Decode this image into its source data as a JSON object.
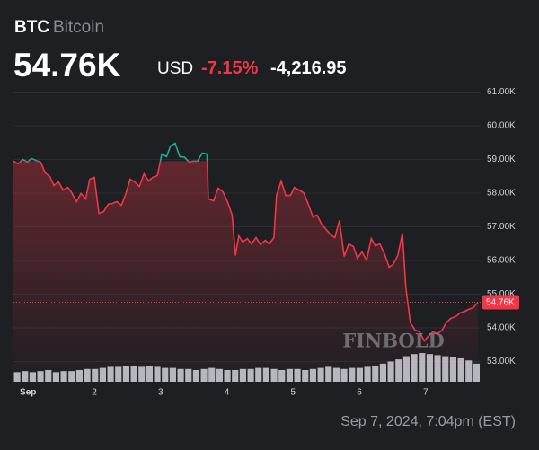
{
  "header": {
    "symbol": "BTC",
    "name": "Bitcoin",
    "price": "54.76K",
    "currency": "USD",
    "change_pct": "-7.15%",
    "change": "-4,216.95"
  },
  "timestamp": "Sep 7, 2024, 7:04pm (EST)",
  "watermark": "FINBOLD",
  "chart_data": {
    "type": "line",
    "x": [
      -0.22,
      -0.15,
      -0.08,
      -0.01,
      0.05,
      0.12,
      0.19,
      0.26,
      0.33,
      0.39,
      0.46,
      0.53,
      0.6,
      0.66,
      0.73,
      0.8,
      0.87,
      0.93,
      1.0,
      1.07,
      1.14,
      1.21,
      1.27,
      1.34,
      1.41,
      1.48,
      1.54,
      1.61,
      1.68,
      1.75,
      1.82,
      1.88,
      1.95,
      2.02,
      2.09,
      2.15,
      2.22,
      2.29,
      2.36,
      2.43,
      2.49,
      2.56,
      2.63,
      2.7,
      2.72,
      2.8,
      2.87,
      2.94,
      3.01,
      3.08,
      3.13,
      3.18,
      3.24,
      3.31,
      3.37,
      3.44,
      3.51,
      3.58,
      3.64,
      3.71,
      3.75,
      3.82,
      3.89,
      3.96,
      4.02,
      4.09,
      4.16,
      4.23,
      4.3,
      4.36,
      4.43,
      4.5,
      4.57,
      4.63,
      4.7,
      4.77,
      4.84,
      4.91,
      4.97,
      5.04,
      5.11,
      5.18,
      5.24,
      5.31,
      5.38,
      5.45,
      5.51,
      5.58,
      5.65,
      5.7,
      5.77,
      5.84,
      5.91,
      5.98,
      6.04,
      6.11,
      6.18,
      6.25,
      6.31,
      6.38,
      6.45,
      6.52,
      6.59,
      6.65,
      6.72,
      6.79
    ],
    "values": [
      58950,
      58870,
      59000,
      58920,
      59030,
      58970,
      58920,
      58600,
      58490,
      58230,
      58330,
      58090,
      58170,
      58010,
      57750,
      57990,
      57830,
      58410,
      58470,
      57400,
      57450,
      57670,
      57690,
      57750,
      57640,
      58010,
      58410,
      58330,
      58200,
      58570,
      58360,
      58470,
      58520,
      59160,
      59080,
      59400,
      59480,
      59080,
      59070,
      58920,
      58950,
      58950,
      59190,
      59160,
      57830,
      57770,
      58150,
      58040,
      57750,
      57350,
      56150,
      56730,
      56550,
      56650,
      56490,
      56680,
      56470,
      56600,
      56490,
      56680,
      57930,
      58360,
      57930,
      57930,
      58170,
      58090,
      58010,
      57670,
      57290,
      57350,
      57080,
      56920,
      56760,
      56680,
      57190,
      56120,
      56490,
      56410,
      56070,
      56250,
      56010,
      56650,
      56440,
      56490,
      56200,
      55800,
      55880,
      56150,
      56810,
      55210,
      54150,
      53930,
      53880,
      53610,
      53750,
      53880,
      53830,
      53930,
      54150,
      54280,
      54330,
      54440,
      54490,
      54550,
      54600,
      54760
    ],
    "up_color": "#22ab94",
    "down_color": "#f23645",
    "last_label": "54.76K",
    "xlim": [
      -0.22,
      6.83
    ],
    "xticks": [
      {
        "value": 0,
        "label": "Sep"
      },
      {
        "value": 1,
        "label": "2"
      },
      {
        "value": 2,
        "label": "3"
      },
      {
        "value": 3,
        "label": "4"
      },
      {
        "value": 4,
        "label": "5"
      },
      {
        "value": 5,
        "label": "6"
      },
      {
        "value": 6,
        "label": "7"
      }
    ],
    "ylim": [
      52400,
      61200
    ],
    "yticks": [
      {
        "value": 53000,
        "label": "53.00K"
      },
      {
        "value": 54000,
        "label": "54.00K"
      },
      {
        "value": 55000,
        "label": "55.00K"
      },
      {
        "value": 56000,
        "label": "56.00K"
      },
      {
        "value": 57000,
        "label": "57.00K"
      },
      {
        "value": 58000,
        "label": "58.00K"
      },
      {
        "value": 59000,
        "label": "59.00K"
      },
      {
        "value": 60000,
        "label": "60.00K"
      },
      {
        "value": 61000,
        "label": "61.00K"
      }
    ],
    "grid": true,
    "volume": {
      "color": "#d1d4dc",
      "values": [
        9,
        10,
        9,
        10,
        11,
        9,
        10,
        10,
        11,
        12,
        12,
        13,
        14,
        14,
        15,
        15,
        14,
        15,
        14,
        13,
        13,
        12,
        12,
        11,
        12,
        13,
        12,
        11,
        11,
        12,
        12,
        13,
        13,
        12,
        11,
        12,
        12,
        11,
        12,
        13,
        14,
        13,
        12,
        13,
        13,
        14,
        15,
        17,
        19,
        21,
        24,
        26,
        27,
        26,
        25,
        24,
        23,
        22,
        20,
        17
      ]
    }
  }
}
